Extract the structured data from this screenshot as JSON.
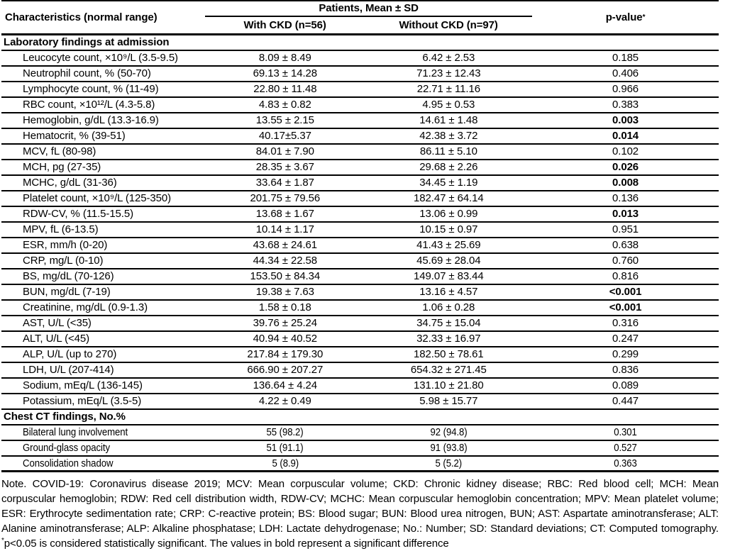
{
  "header": {
    "characteristics": "Characteristics (normal range)",
    "patients_group": "Patients, Mean ± SD",
    "with_ckd": "With CKD (n=56)",
    "without_ckd": "Without CKD (n=97)",
    "p_value": "p-value",
    "p_value_asterisk": "*"
  },
  "table": {
    "rows": [
      {
        "type": "section",
        "label": "Laboratory findings at admission"
      },
      {
        "type": "data",
        "label": "Leucocyte count, ×10⁹/L (3.5-9.5)",
        "with_ckd": "8.09 ± 8.49",
        "without_ckd": "6.42 ± 2.53",
        "p": "0.185",
        "significant": false
      },
      {
        "type": "data",
        "label": "Neutrophil count, % (50-70)",
        "with_ckd": "69.13 ± 14.28",
        "without_ckd": "71.23 ± 12.43",
        "p": "0.406",
        "significant": false
      },
      {
        "type": "data",
        "label": "Lymphocyte count, % (11-49)",
        "with_ckd": "22.80 ± 11.48",
        "without_ckd": "22.71 ± 11.16",
        "p": "0.966",
        "significant": false
      },
      {
        "type": "data",
        "label": "RBC count, ×10¹²/L (4.3-5.8)",
        "with_ckd": "4.83 ± 0.82",
        "without_ckd": "4.95 ± 0.53",
        "p": "0.383",
        "significant": false
      },
      {
        "type": "data",
        "label": "Hemoglobin, g/dL (13.3-16.9)",
        "with_ckd": "13.55 ± 2.15",
        "without_ckd": "14.61 ± 1.48",
        "p": "0.003",
        "significant": true
      },
      {
        "type": "data",
        "label": "Hematocrit, % (39-51)",
        "with_ckd": "40.17±5.37",
        "without_ckd": "42.38 ± 3.72",
        "p": "0.014",
        "significant": true
      },
      {
        "type": "data",
        "label": "MCV, fL (80-98)",
        "with_ckd": "84.01 ± 7.90",
        "without_ckd": "86.11 ± 5.10",
        "p": "0.102",
        "significant": false
      },
      {
        "type": "data",
        "label": "MCH, pg (27-35)",
        "with_ckd": "28.35 ± 3.67",
        "without_ckd": "29.68 ± 2.26",
        "p": "0.026",
        "significant": true
      },
      {
        "type": "data",
        "label": "MCHC, g/dL (31-36)",
        "with_ckd": "33.64 ± 1.87",
        "without_ckd": "34.45 ± 1.19",
        "p": "0.008",
        "significant": true
      },
      {
        "type": "data",
        "label": "Platelet count, ×10⁹/L (125-350)",
        "with_ckd": "201.75 ± 79.56",
        "without_ckd": "182.47 ± 64.14",
        "p": "0.136",
        "significant": false
      },
      {
        "type": "data",
        "label": "RDW-CV, % (11.5-15.5)",
        "with_ckd": "13.68 ± 1.67",
        "without_ckd": "13.06 ± 0.99",
        "p": "0.013",
        "significant": true
      },
      {
        "type": "data",
        "label": "MPV, fL (6-13.5)",
        "with_ckd": "10.14 ± 1.17",
        "without_ckd": "10.15 ± 0.97",
        "p": "0.951",
        "significant": false
      },
      {
        "type": "data",
        "label": "ESR, mm/h (0-20)",
        "with_ckd": "43.68 ± 24.61",
        "without_ckd": "41.43 ± 25.69",
        "p": "0.638",
        "significant": false
      },
      {
        "type": "data",
        "label": "CRP, mg/L (0-10)",
        "with_ckd": "44.34 ± 22.58",
        "without_ckd": "45.69 ± 28.04",
        "p": "0.760",
        "significant": false
      },
      {
        "type": "data",
        "label": "BS, mg/dL (70-126)",
        "with_ckd": "153.50 ± 84.34",
        "without_ckd": "149.07 ± 83.44",
        "p": "0.816",
        "significant": false
      },
      {
        "type": "data",
        "label": "BUN, mg/dL (7-19)",
        "with_ckd": "19.38 ± 7.63",
        "without_ckd": "13.16 ± 4.57",
        "p": "<0.001",
        "significant": true
      },
      {
        "type": "data",
        "label": "Creatinine, mg/dL (0.9-1.3)",
        "with_ckd": "1.58 ± 0.18",
        "without_ckd": "1.06 ± 0.28",
        "p": "<0.001",
        "significant": true
      },
      {
        "type": "data",
        "label": "AST, U/L (<35)",
        "with_ckd": "39.76 ± 25.24",
        "without_ckd": "34.75 ± 15.04",
        "p": "0.316",
        "significant": false
      },
      {
        "type": "data",
        "label": "ALT, U/L (<45)",
        "with_ckd": "40.94 ± 40.52",
        "without_ckd": "32.33 ± 16.97",
        "p": "0.247",
        "significant": false
      },
      {
        "type": "data",
        "label": "ALP, U/L (up to 270)",
        "with_ckd": "217.84 ± 179.30",
        "without_ckd": "182.50 ± 78.61",
        "p": "0.299",
        "significant": false
      },
      {
        "type": "data",
        "label": "LDH, U/L (207-414)",
        "with_ckd": "666.90 ± 207.27",
        "without_ckd": "654.32 ± 271.45",
        "p": "0.836",
        "significant": false
      },
      {
        "type": "data",
        "label": "Sodium, mEq/L (136-145)",
        "with_ckd": "136.64 ± 4.24",
        "without_ckd": "131.10 ± 21.80",
        "p": "0.089",
        "significant": false
      },
      {
        "type": "data",
        "label": "Potassium, mEq/L (3.5-5)",
        "with_ckd": "4.22 ± 0.49",
        "without_ckd": "5.98 ± 15.77",
        "p": "0.447",
        "significant": false
      },
      {
        "type": "section",
        "label": "Chest CT findings, No.%"
      },
      {
        "type": "data",
        "condensed": true,
        "label": "Bilateral lung involvement",
        "with_ckd": "55 (98.2)",
        "without_ckd": "92 (94.8)",
        "p": "0.301",
        "significant": false
      },
      {
        "type": "data",
        "condensed": true,
        "label": "Ground-glass opacity",
        "with_ckd": "51 (91.1)",
        "without_ckd": "91 (93.8)",
        "p": "0.527",
        "significant": false
      },
      {
        "type": "data",
        "condensed": true,
        "last": true,
        "label": "Consolidation shadow",
        "with_ckd": "5 (8.9)",
        "without_ckd": "5 (5.2)",
        "p": "0.363",
        "significant": false
      }
    ]
  },
  "note": {
    "main": "Note. COVID-19: Coronavirus disease 2019; MCV: Mean corpuscular volume; CKD: Chronic kidney disease; RBC: Red blood cell; MCH: Mean corpuscular hemoglobin; RDW: Red cell distribution width, RDW-CV; MCHC: Mean corpuscular hemoglobin concentration; MPV: Mean platelet volume; ESR: Erythrocyte sedimentation rate; CRP: C-reactive protein; BS: Blood sugar; BUN: Blood urea nitrogen, BUN; AST: Aspartate aminotransferase; ALT: Alanine aminotransferase; ALP: Alkaline phosphatase; LDH: Lactate dehydrogenase; No.: Number; SD: Standard deviations; CT: Computed tomography. ",
    "asterisk": "*",
    "significance": "p<0.05 is considered statistically significant. The values in bold represent a significant difference"
  },
  "colors": {
    "text": "#000000",
    "rule": "#000000",
    "background": "#ffffff"
  }
}
